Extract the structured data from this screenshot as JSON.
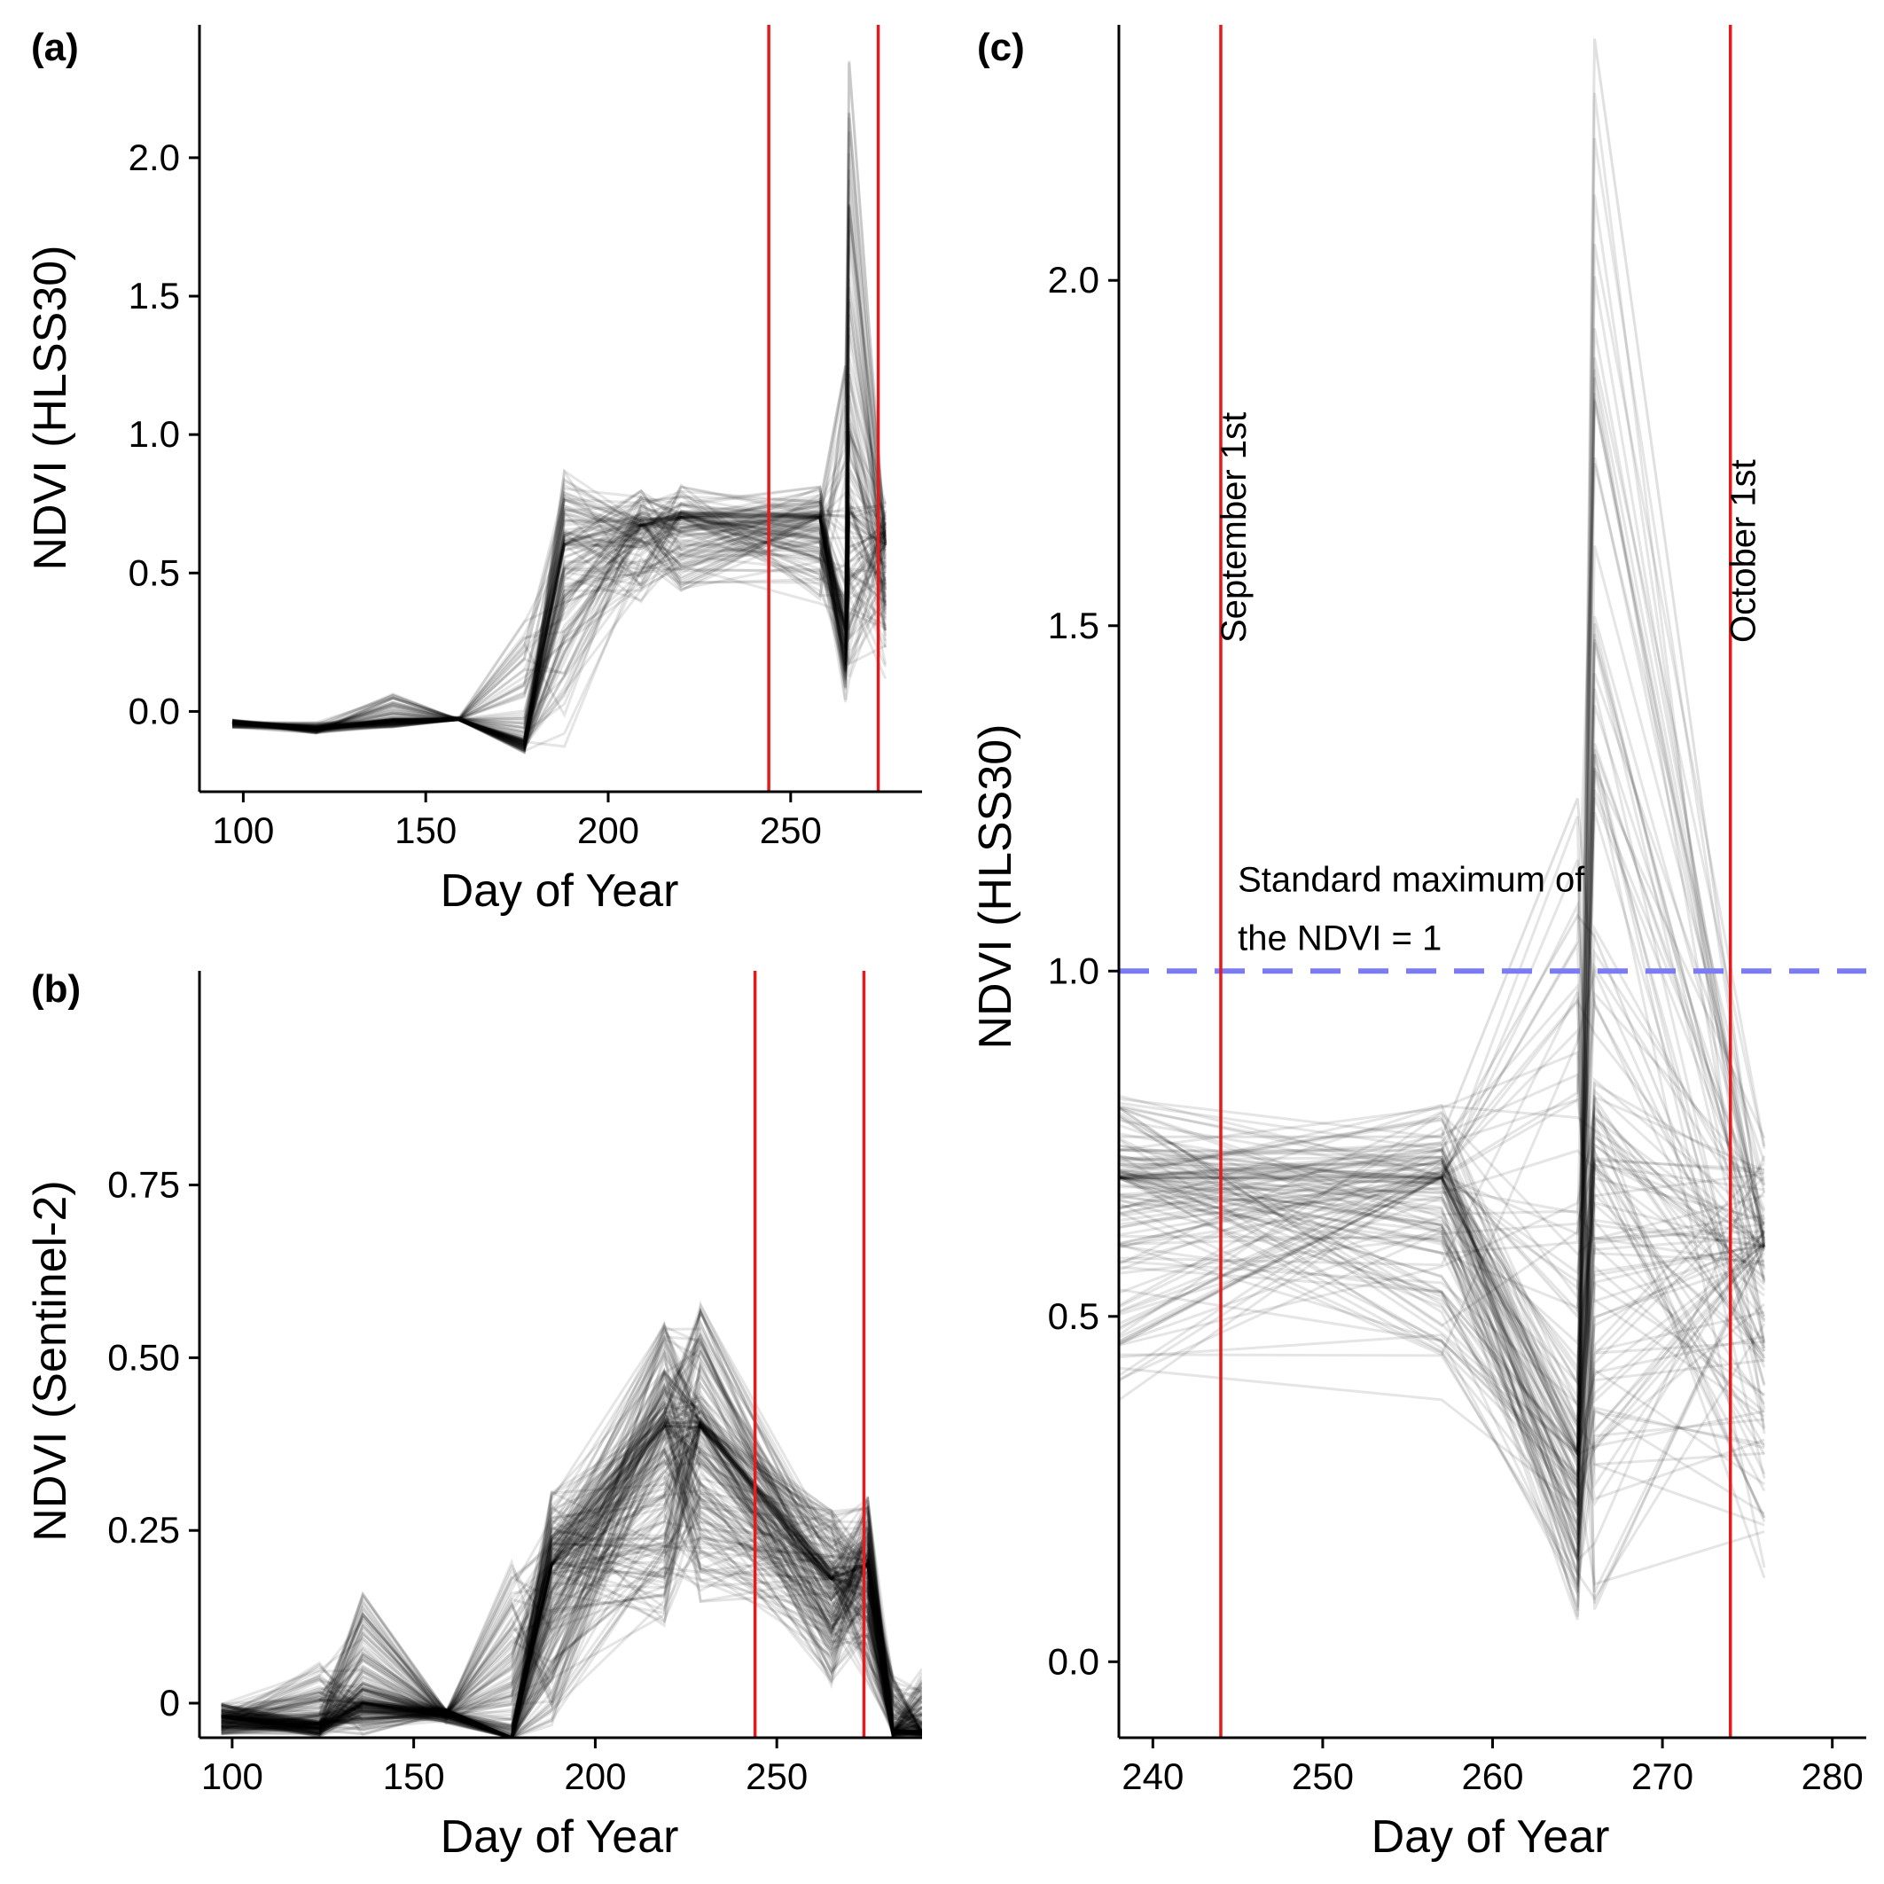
{
  "panels": [
    {
      "id": "a",
      "label": "(a)",
      "xlabel": "Day of Year",
      "ylabel": "NDVI (HLSS30)",
      "xlim": [
        88,
        286
      ],
      "ylim": [
        -0.29,
        2.48
      ],
      "xticks": [
        100,
        150,
        200,
        250
      ],
      "xticklabels": [
        "100",
        "150",
        "200",
        "250"
      ],
      "yticks": [
        0,
        0.5,
        1,
        1.5,
        2
      ],
      "yticklabels": [
        "0.0",
        "0.5",
        "1.0",
        "1.5",
        "2.0"
      ]
    },
    {
      "id": "b",
      "label": "(b)",
      "xlabel": "Day of Year",
      "ylabel": "NDVI (Sentinel-2)",
      "xlim": [
        91,
        290
      ],
      "ylim": [
        -0.05,
        1.06
      ],
      "xticks": [
        100,
        150,
        200,
        250
      ],
      "xticklabels": [
        "100",
        "150",
        "200",
        "250"
      ],
      "yticks": [
        0,
        0.25,
        0.5,
        0.75
      ],
      "yticklabels": [
        "0",
        "0.25",
        "0.50",
        "0.75"
      ]
    },
    {
      "id": "c",
      "label": "(c)",
      "xlabel": "Day of Year",
      "ylabel": "NDVI (HLSS30)",
      "xlim": [
        238,
        282
      ],
      "ylim": [
        -0.11,
        2.37
      ],
      "xticks": [
        240,
        250,
        260,
        270,
        280
      ],
      "xticklabels": [
        "240",
        "250",
        "260",
        "270",
        "280"
      ],
      "yticks": [
        0,
        0.5,
        1,
        1.5,
        2
      ],
      "yticklabels": [
        "0.0",
        "0.5",
        "1.0",
        "1.5",
        "2.0"
      ]
    }
  ],
  "chart_data": [
    {
      "panel": "a",
      "type": "line",
      "series_color": "#000000",
      "series_opacity": 0.1,
      "vlines": [
        {
          "x": 244,
          "color": "#e41a1c"
        },
        {
          "x": 274,
          "color": "#e41a1c"
        }
      ],
      "x": [
        97,
        120,
        141,
        159,
        177,
        188,
        209,
        220,
        258,
        265,
        266,
        276
      ],
      "envelope_low": [
        -0.06,
        -0.08,
        -0.06,
        -0.03,
        -0.15,
        -0.15,
        0.38,
        0.38,
        0.38,
        0.03,
        0.06,
        0.1
      ],
      "envelope_high": [
        -0.03,
        -0.04,
        0.07,
        -0.02,
        0.34,
        0.87,
        0.8,
        0.82,
        0.82,
        1.25,
        2.35,
        0.76
      ],
      "median": [
        -0.04,
        -0.06,
        -0.03,
        -0.03,
        -0.11,
        0.6,
        0.67,
        0.7,
        0.7,
        0.3,
        0.72,
        0.6
      ],
      "spikes": [
        {
          "x": [
            258,
            265,
            266,
            276
          ],
          "y": [
            0.7,
            0.3,
            2.35,
            0.6
          ]
        },
        {
          "x": [
            258,
            265,
            266,
            276
          ],
          "y": [
            0.72,
            0.45,
            1.48,
            0.55
          ]
        },
        {
          "x": [
            258,
            265,
            266,
            276
          ],
          "y": [
            0.75,
            1.25,
            0.95,
            0.5
          ]
        }
      ]
    },
    {
      "panel": "b",
      "type": "line",
      "series_color": "#000000",
      "series_opacity": 0.1,
      "vlines": [
        {
          "x": 244,
          "color": "#e41a1c"
        },
        {
          "x": 274,
          "color": "#e41a1c"
        }
      ],
      "x": [
        97,
        124,
        136,
        159,
        177,
        188,
        219,
        229,
        265,
        275,
        282,
        290
      ],
      "envelope_low": [
        -0.05,
        -0.05,
        -0.05,
        -0.03,
        -0.05,
        -0.05,
        0.1,
        0.12,
        0.02,
        0.02,
        -0.05,
        -0.05
      ],
      "envelope_high": [
        0.0,
        0.06,
        0.16,
        -0.02,
        0.21,
        0.31,
        0.55,
        0.58,
        0.28,
        0.3,
        0.04,
        0.05
      ],
      "median": [
        -0.02,
        -0.03,
        0.0,
        -0.01,
        -0.05,
        0.2,
        0.4,
        0.4,
        0.18,
        0.2,
        -0.04,
        -0.04
      ]
    },
    {
      "panel": "c",
      "type": "line",
      "series_color": "#000000",
      "series_opacity": 0.1,
      "vlines": [
        {
          "x": 244,
          "color": "#e41a1c",
          "label": "September 1st"
        },
        {
          "x": 274,
          "color": "#e41a1c",
          "label": "October 1st"
        }
      ],
      "hline": {
        "y": 1,
        "color": "#7b7bf2",
        "style": "dashed",
        "annotation": [
          "Standard maximum of",
          "the NDVI = 1"
        ]
      },
      "x": [
        238,
        257,
        265,
        266,
        276
      ],
      "envelope_low": [
        0.37,
        0.37,
        0.03,
        0.03,
        0.1
      ],
      "envelope_high": [
        0.82,
        0.81,
        1.25,
        2.35,
        0.76
      ],
      "median": [
        0.7,
        0.7,
        0.3,
        0.72,
        0.6
      ],
      "spikes": [
        {
          "x": [
            238,
            257,
            265,
            266,
            276
          ],
          "y": [
            0.7,
            0.7,
            0.3,
            2.35,
            0.6
          ]
        },
        {
          "x": [
            238,
            257,
            265,
            266,
            276
          ],
          "y": [
            0.72,
            0.72,
            0.5,
            1.48,
            0.55
          ]
        },
        {
          "x": [
            238,
            257,
            265,
            266,
            276
          ],
          "y": [
            0.76,
            0.76,
            1.25,
            0.95,
            0.5
          ]
        },
        {
          "x": [
            238,
            257,
            265,
            266,
            276
          ],
          "y": [
            0.74,
            0.74,
            1.08,
            1.05,
            0.45
          ]
        }
      ]
    }
  ]
}
